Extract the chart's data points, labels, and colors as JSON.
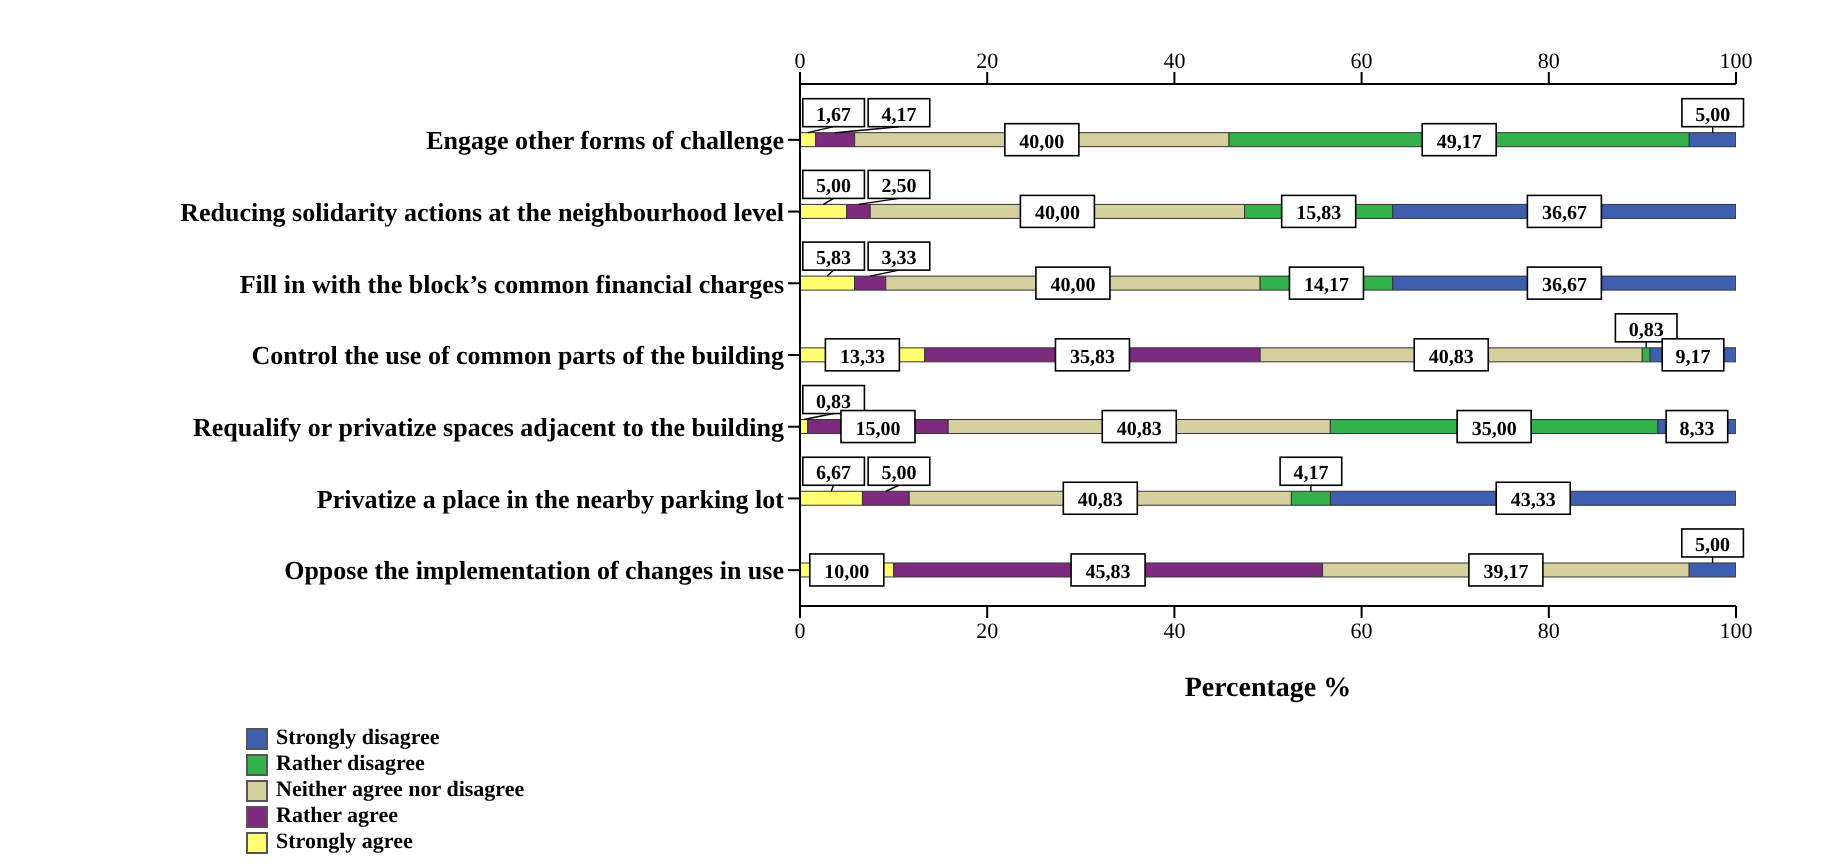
{
  "chart_data": {
    "type": "bar",
    "orientation": "horizontal",
    "stacked": true,
    "xlabel": "Percentage %",
    "legend": "bottom left",
    "categories": [
      "Engage other forms of challenge",
      "Reducing solidarity actions at the neighbourhood level",
      "Fill in with the block’s common financial charges",
      "Control the use of common parts of the building",
      "Requalify or privatize spaces adjacent to the building",
      "Privatize a place in the nearby parking lot",
      "Oppose the implementation of changes in use"
    ],
    "xlim": [
      0,
      100
    ],
    "xticks": [
      0,
      20,
      40,
      60,
      80,
      100
    ],
    "x2lim": [
      0,
      100
    ],
    "x2ticks": [
      0,
      20,
      40,
      60,
      80,
      100
    ],
    "series": [
      {
        "name": "Strongly agree",
        "color": "#ffff70",
        "values": [
          1.67,
          5.0,
          5.83,
          13.33,
          0.83,
          6.67,
          10.0
        ],
        "value_labels": [
          "1,67",
          "5,00",
          "5,83",
          "13,33",
          "0,83",
          "6,67",
          "10,00"
        ]
      },
      {
        "name": "Rather agree",
        "color": "#7e2a7e",
        "values": [
          4.17,
          2.5,
          3.33,
          35.83,
          15.0,
          5.0,
          45.83
        ],
        "value_labels": [
          "4,17",
          "2,50",
          "3,33",
          "35,83",
          "15,00",
          "5,00",
          "45,83"
        ]
      },
      {
        "name": "Neither agree nor disagree",
        "color": "#d6cf9e",
        "values": [
          40.0,
          40.0,
          40.0,
          40.83,
          40.83,
          40.83,
          39.17
        ],
        "value_labels": [
          "40,00",
          "40,00",
          "40,00",
          "40,83",
          "40,83",
          "40,83",
          "39,17"
        ]
      },
      {
        "name": "Rather disagree",
        "color": "#33b14a",
        "values": [
          49.17,
          15.83,
          14.17,
          0.83,
          35.0,
          4.17,
          null
        ],
        "value_labels": [
          "49,17",
          "15,83",
          "14,17",
          "0,83",
          "35,00",
          "4,17",
          null
        ]
      },
      {
        "name": "Strongly disagree",
        "color": "#3e5eb0",
        "values": [
          5.0,
          36.67,
          36.67,
          9.17,
          8.33,
          43.33,
          5.0
        ],
        "value_labels": [
          "5,00",
          "36,67",
          "36,67",
          "9,17",
          "8,33",
          "43,33",
          "5,00"
        ]
      }
    ]
  }
}
